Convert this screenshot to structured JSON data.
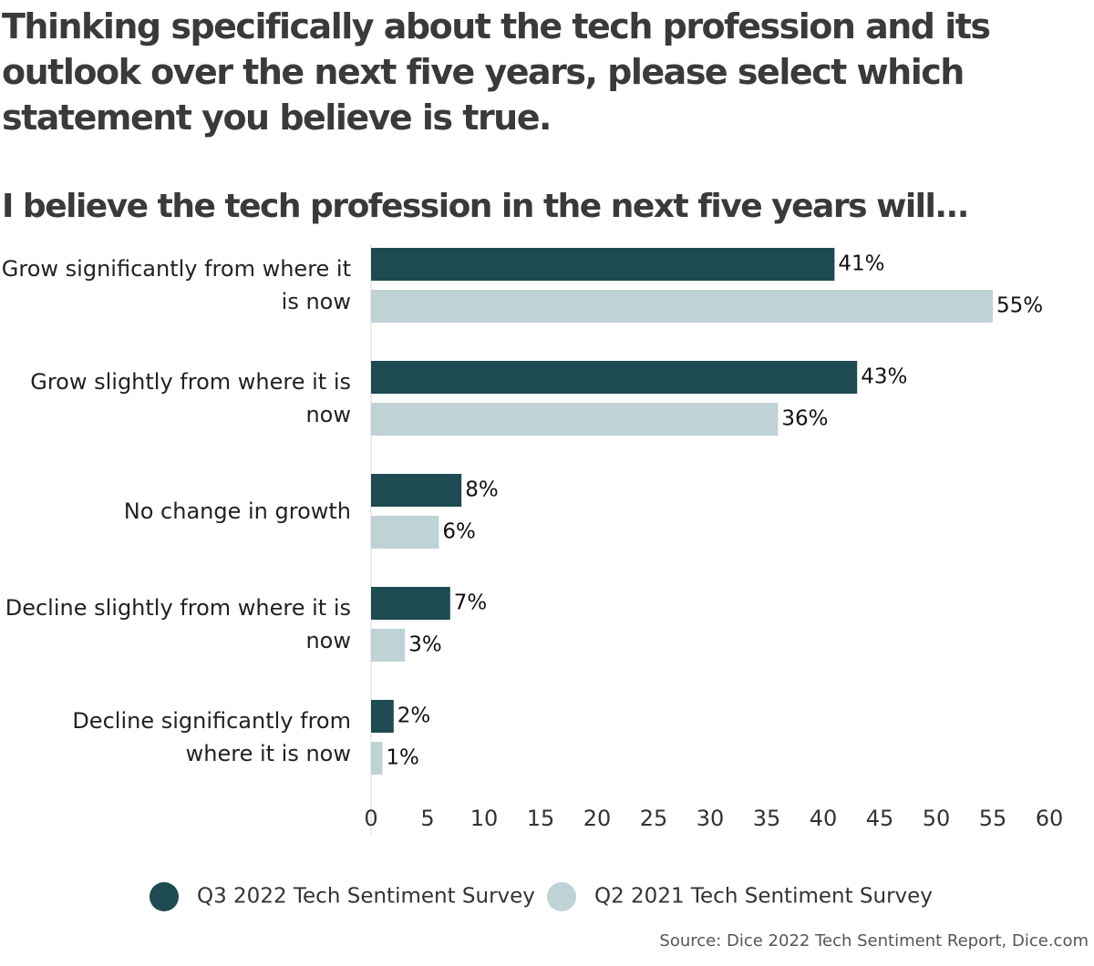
{
  "chart_data": {
    "type": "bar",
    "orientation": "horizontal",
    "title": "Thinking specifically about the tech profession and its outlook over the next five years, please select which statement you believe is true.",
    "subtitle": "I believe the tech profession in the next five years will...",
    "categories": [
      "Grow significantly from where it is now",
      "Grow slightly from where it is now",
      "No change in growth",
      "Decline slightly from where it is now",
      "Decline significantly from where it is now"
    ],
    "series": [
      {
        "name": "Q3 2022 Tech Sentiment Survey",
        "color": "#1e4a52",
        "values": [
          41,
          43,
          8,
          7,
          2
        ],
        "value_labels": [
          "41%",
          "43%",
          "8%",
          "7%",
          "2%"
        ]
      },
      {
        "name": "Q2 2021 Tech Sentiment Survey",
        "color": "#bfd2d5",
        "values": [
          55,
          36,
          6,
          3,
          1
        ],
        "value_labels": [
          "55%",
          "36%",
          "6%",
          "3%",
          "1%"
        ]
      }
    ],
    "xlim": [
      0,
      60
    ],
    "xticks": [
      0,
      5,
      10,
      15,
      20,
      25,
      30,
      35,
      40,
      45,
      50,
      55,
      60
    ],
    "legend": "bottom",
    "source": "Source: Dice 2022 Tech Sentiment Report, Dice.com"
  }
}
